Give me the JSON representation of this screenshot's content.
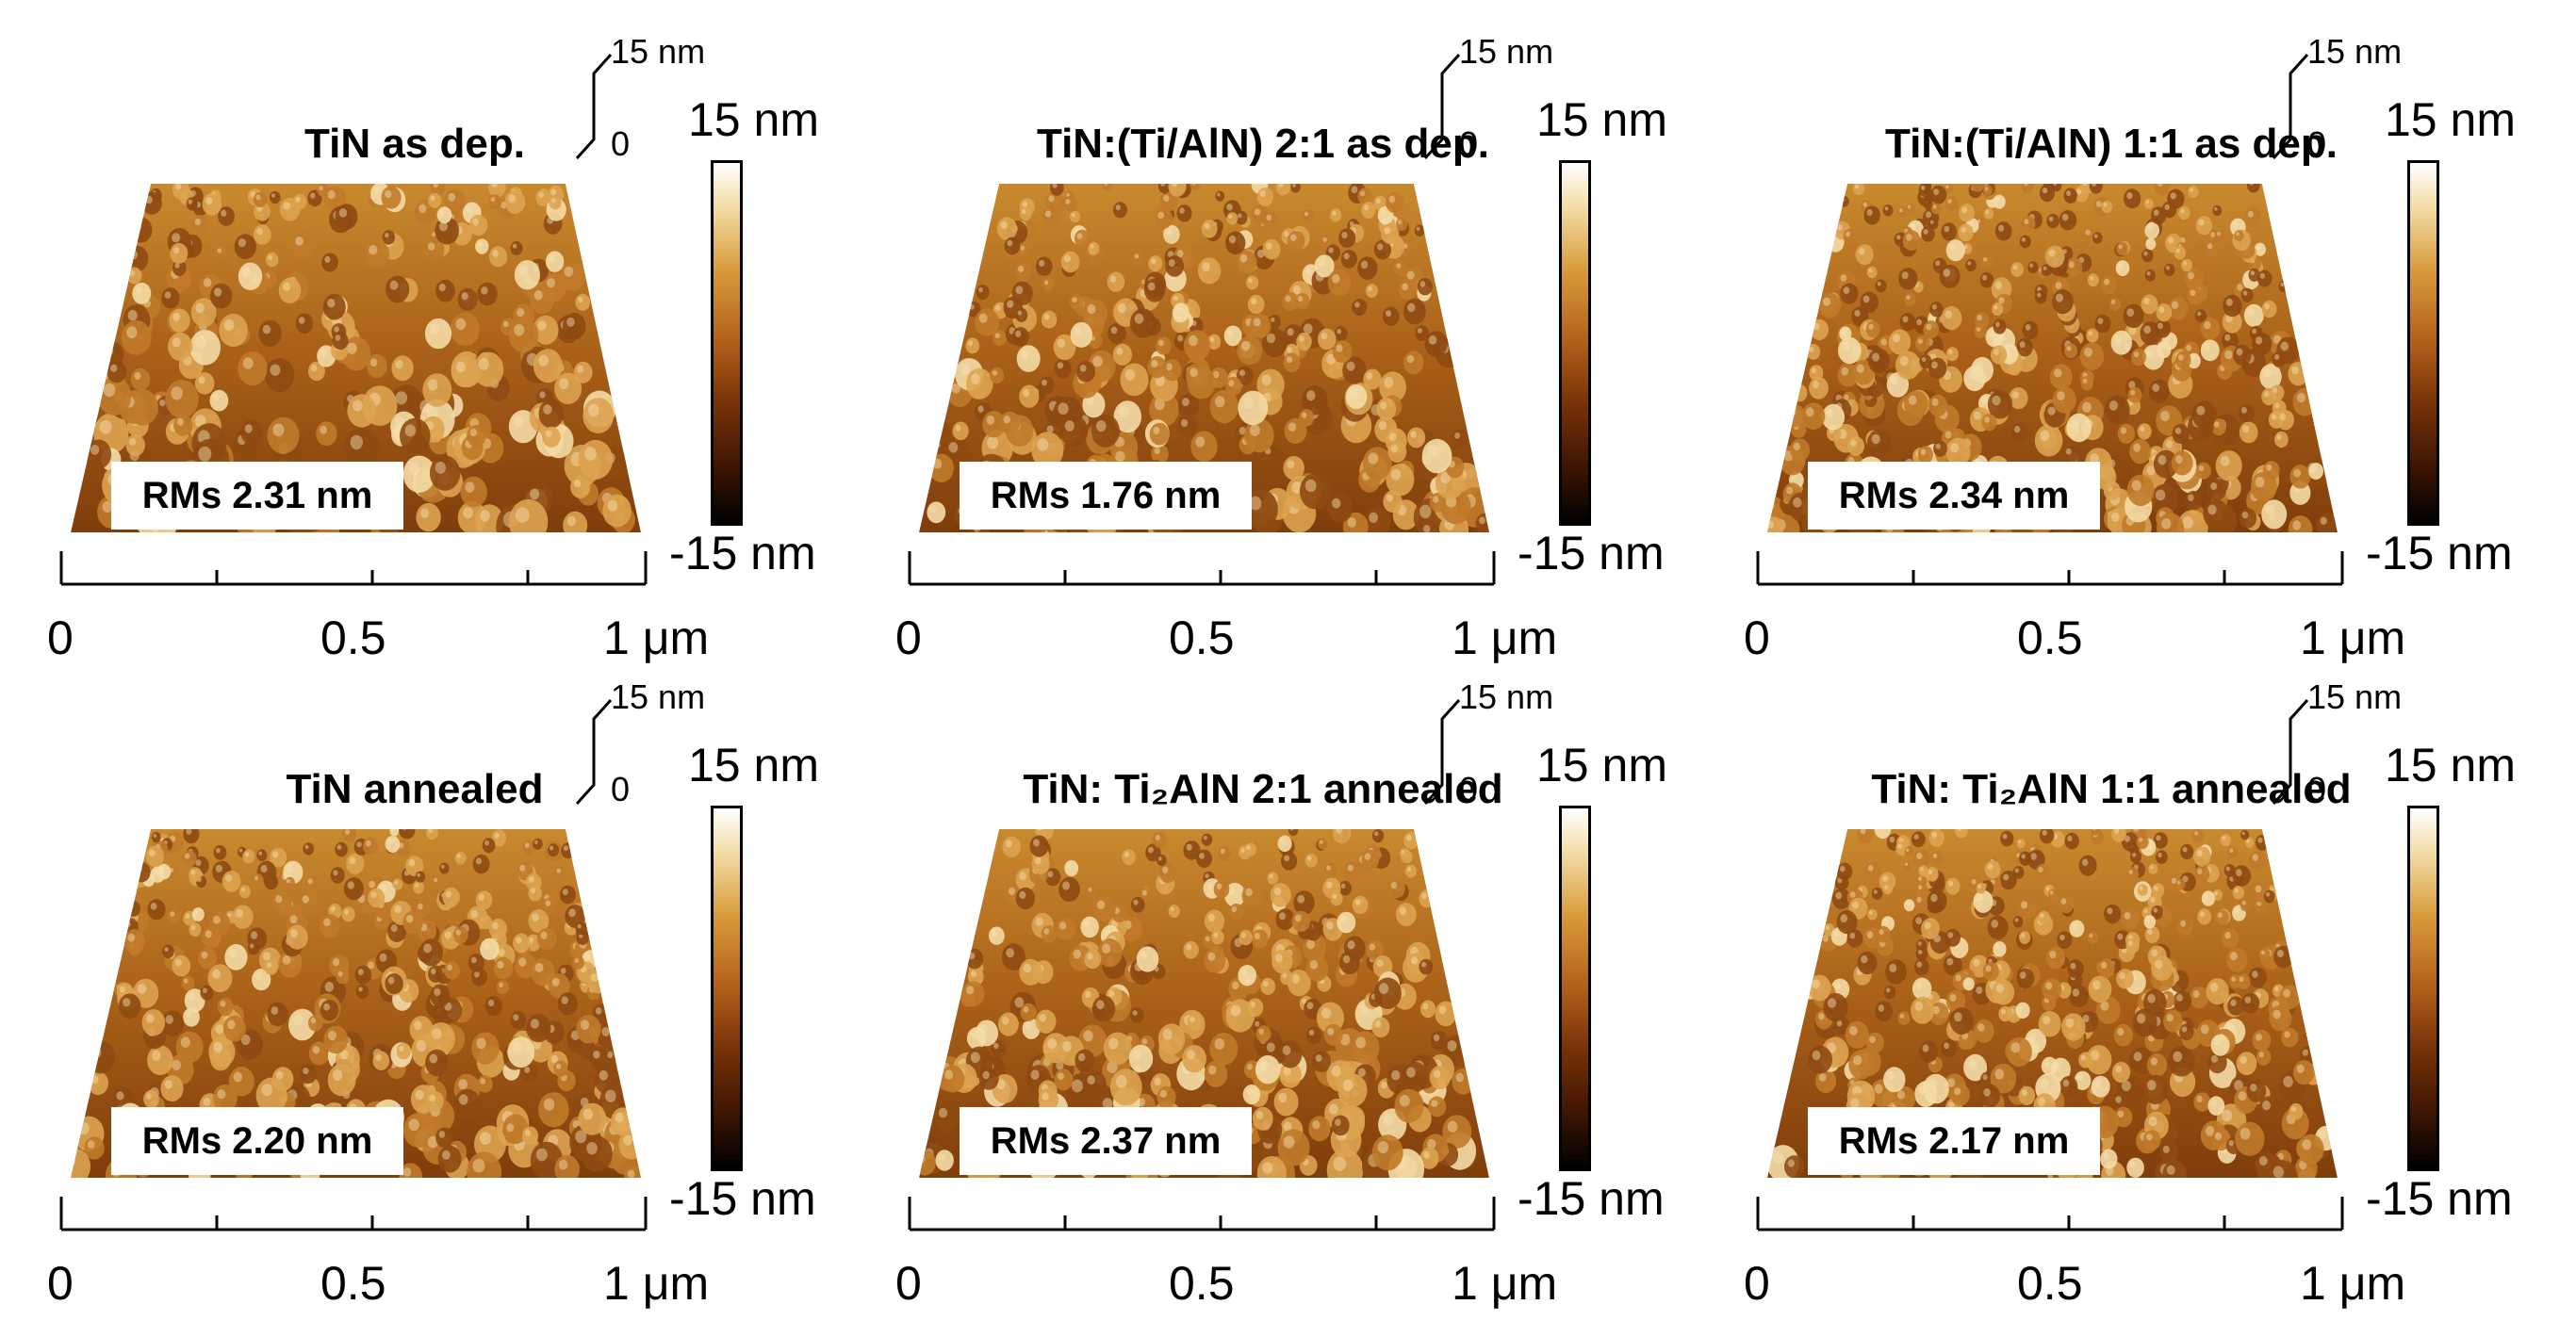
{
  "figure": {
    "panels": [
      {
        "title": "TiN as dep.",
        "rms": "RMs 2.31 nm"
      },
      {
        "title": "TiN:(Ti/AlN) 2:1 as dep.",
        "rms": "RMs 1.76 nm"
      },
      {
        "title": "TiN:(Ti/AlN) 1:1 as dep.",
        "rms": "RMs 2.34 nm"
      },
      {
        "title": "TiN annealed",
        "rms": "RMs 2.20 nm"
      },
      {
        "title": "TiN: Ti₂AlN 2:1 annealed",
        "rms": "RMs 2.37 nm"
      },
      {
        "title": "TiN: Ti₂AlN 1:1 annealed",
        "rms": "RMs 2.17 nm"
      }
    ],
    "colorbar": {
      "max_label": "15 nm",
      "min_label": "-15 nm",
      "colors": [
        "#ffffff",
        "#d89a3a",
        "#b5651b",
        "#7a3408",
        "#000000"
      ]
    },
    "z_scale": {
      "top_label": "15 nm",
      "zero_label": "0"
    },
    "x_axis": {
      "tick_labels": [
        "0",
        "0.5",
        "1 μm"
      ]
    }
  }
}
